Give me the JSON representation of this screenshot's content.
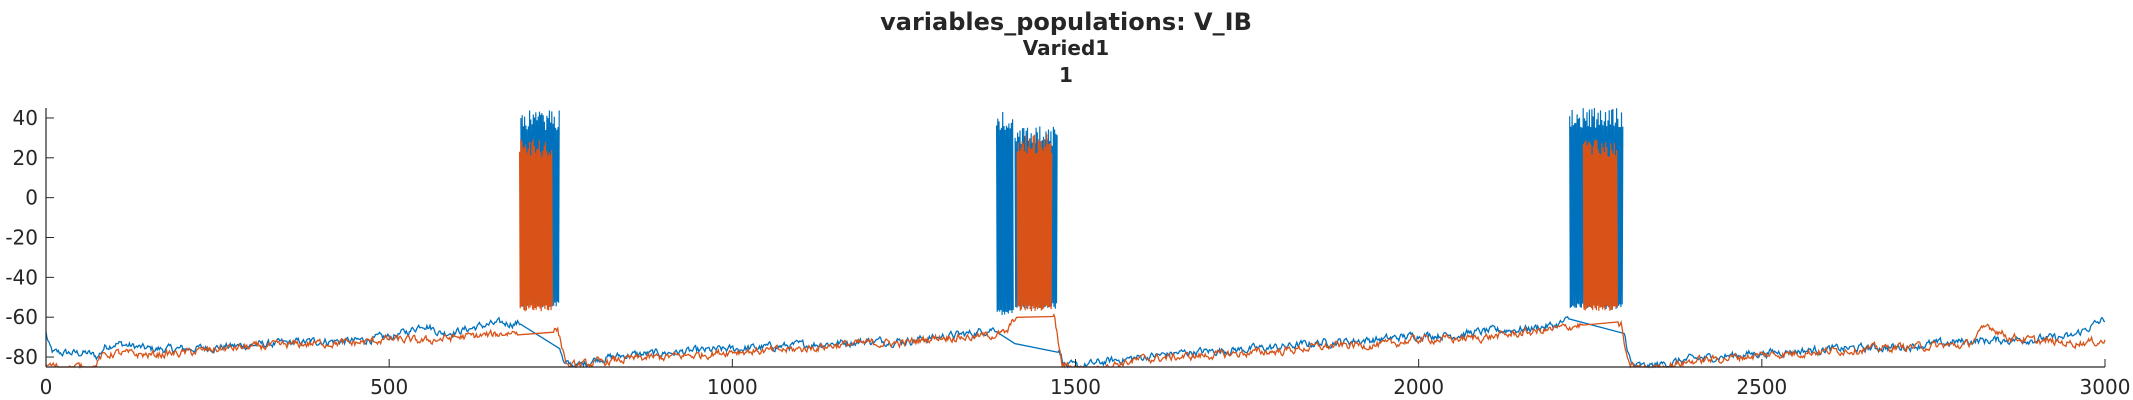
{
  "chart_data": {
    "type": "line",
    "title": "variables_populations: V_IB",
    "subtitle": "Varied1",
    "subtitle2": "1",
    "xlabel": "",
    "ylabel": "",
    "xlim": [
      0,
      3000
    ],
    "ylim": [
      -85,
      45
    ],
    "xticks": [
      0,
      500,
      1000,
      1500,
      2000,
      2500,
      3000
    ],
    "yticks": [
      -80,
      -60,
      -40,
      -20,
      0,
      20,
      40
    ],
    "grid": false,
    "legend": "none",
    "series": [
      {
        "color": "#0072BD",
        "baseline": [
          [
            0,
            -68
          ],
          [
            5,
            -75
          ],
          [
            10,
            -78
          ],
          [
            60,
            -78
          ],
          [
            75,
            -80
          ],
          [
            85,
            -75
          ],
          [
            100,
            -73
          ],
          [
            150,
            -76
          ],
          [
            200,
            -76
          ],
          [
            250,
            -75
          ],
          [
            300,
            -74
          ],
          [
            350,
            -73
          ],
          [
            400,
            -72
          ],
          [
            450,
            -72
          ],
          [
            500,
            -70
          ],
          [
            530,
            -67
          ],
          [
            550,
            -63
          ],
          [
            575,
            -68
          ],
          [
            600,
            -67
          ],
          [
            640,
            -64
          ],
          [
            670,
            -63
          ],
          [
            690,
            -63
          ],
          [
            720,
            -60
          ],
          [
            740,
            -62
          ],
          [
            755,
            -84
          ],
          [
            780,
            -84
          ],
          [
            800,
            -81
          ],
          [
            850,
            -79
          ],
          [
            900,
            -78
          ],
          [
            950,
            -77
          ],
          [
            1000,
            -76
          ],
          [
            1050,
            -75
          ],
          [
            1100,
            -74
          ],
          [
            1150,
            -73
          ],
          [
            1200,
            -72
          ],
          [
            1250,
            -72
          ],
          [
            1300,
            -70
          ],
          [
            1350,
            -68
          ],
          [
            1390,
            -65
          ],
          [
            1405,
            -70
          ],
          [
            1420,
            -75
          ],
          [
            1440,
            -74
          ],
          [
            1470,
            -72
          ],
          [
            1485,
            -84
          ],
          [
            1500,
            -85
          ],
          [
            1550,
            -82
          ],
          [
            1600,
            -80
          ],
          [
            1650,
            -78
          ],
          [
            1700,
            -77
          ],
          [
            1750,
            -76
          ],
          [
            1800,
            -75
          ],
          [
            1850,
            -73
          ],
          [
            1900,
            -72
          ],
          [
            1950,
            -71
          ],
          [
            2000,
            -69
          ],
          [
            2050,
            -69
          ],
          [
            2100,
            -67
          ],
          [
            2150,
            -66
          ],
          [
            2200,
            -64
          ],
          [
            2230,
            -60
          ],
          [
            2260,
            -62
          ],
          [
            2295,
            -62
          ],
          [
            2310,
            -84
          ],
          [
            2330,
            -85
          ],
          [
            2400,
            -81
          ],
          [
            2500,
            -78
          ],
          [
            2600,
            -76
          ],
          [
            2700,
            -75
          ],
          [
            2800,
            -72
          ],
          [
            2900,
            -71
          ],
          [
            2950,
            -70
          ],
          [
            3000,
            -61
          ]
        ],
        "bursts": [
          {
            "start": 692,
            "end": 748,
            "spike_max": 44,
            "trough": -52
          },
          {
            "start": 1385,
            "end": 1410,
            "spike_max": 43,
            "trough": -56
          },
          {
            "start": 1412,
            "end": 1474,
            "spike_max": 36,
            "trough": -53
          },
          {
            "start": 2220,
            "end": 2298,
            "spike_max": 45,
            "trough": -53
          }
        ]
      },
      {
        "color": "#D95319",
        "baseline": [
          [
            0,
            -84
          ],
          [
            20,
            -85
          ],
          [
            70,
            -85
          ],
          [
            80,
            -80
          ],
          [
            100,
            -78
          ],
          [
            150,
            -79
          ],
          [
            200,
            -78
          ],
          [
            250,
            -76
          ],
          [
            300,
            -75
          ],
          [
            350,
            -74
          ],
          [
            400,
            -73
          ],
          [
            450,
            -73
          ],
          [
            500,
            -71
          ],
          [
            550,
            -72
          ],
          [
            600,
            -70
          ],
          [
            650,
            -69
          ],
          [
            690,
            -67
          ],
          [
            720,
            -65
          ],
          [
            745,
            -66
          ],
          [
            760,
            -85
          ],
          [
            800,
            -83
          ],
          [
            850,
            -81
          ],
          [
            900,
            -80
          ],
          [
            950,
            -79
          ],
          [
            1000,
            -77
          ],
          [
            1050,
            -77
          ],
          [
            1100,
            -76
          ],
          [
            1150,
            -74
          ],
          [
            1200,
            -73
          ],
          [
            1250,
            -73
          ],
          [
            1300,
            -70
          ],
          [
            1350,
            -70
          ],
          [
            1400,
            -68
          ],
          [
            1412,
            -60
          ],
          [
            1440,
            -58
          ],
          [
            1470,
            -61
          ],
          [
            1480,
            -84
          ],
          [
            1520,
            -86
          ],
          [
            1550,
            -84
          ],
          [
            1600,
            -81
          ],
          [
            1650,
            -80
          ],
          [
            1700,
            -79
          ],
          [
            1750,
            -78
          ],
          [
            1800,
            -77
          ],
          [
            1850,
            -75
          ],
          [
            1900,
            -74
          ],
          [
            1950,
            -74
          ],
          [
            2000,
            -71
          ],
          [
            2050,
            -71
          ],
          [
            2100,
            -70
          ],
          [
            2150,
            -68
          ],
          [
            2200,
            -66
          ],
          [
            2230,
            -64
          ],
          [
            2260,
            -64
          ],
          [
            2295,
            -64
          ],
          [
            2305,
            -84
          ],
          [
            2330,
            -86
          ],
          [
            2400,
            -82
          ],
          [
            2500,
            -79
          ],
          [
            2600,
            -77
          ],
          [
            2700,
            -75
          ],
          [
            2800,
            -74
          ],
          [
            2830,
            -64
          ],
          [
            2860,
            -70
          ],
          [
            2900,
            -72
          ],
          [
            2950,
            -73
          ],
          [
            3000,
            -72
          ]
        ],
        "bursts": [
          {
            "start": 690,
            "end": 738,
            "spike_max": 30,
            "trough": -54
          },
          {
            "start": 1415,
            "end": 1466,
            "spike_max": 32,
            "trough": -54
          },
          {
            "start": 2240,
            "end": 2290,
            "spike_max": 30,
            "trough": -54
          }
        ]
      }
    ]
  }
}
